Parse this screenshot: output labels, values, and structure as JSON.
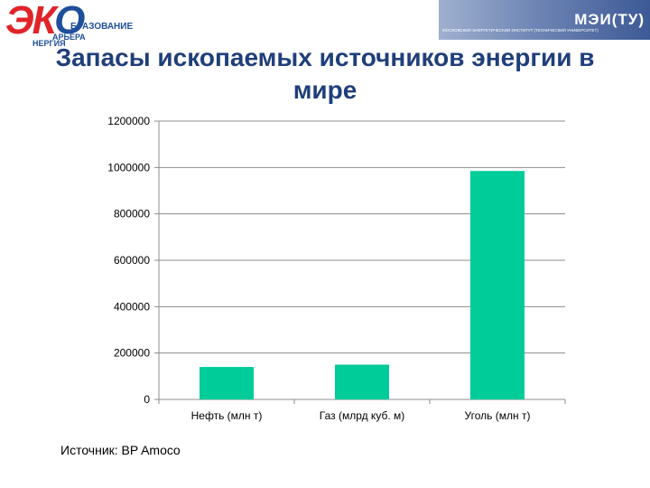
{
  "header": {
    "logo_text_red": "ЭК",
    "logo_text_blue": "О",
    "logo_line1": "БРАЗОВАНИЕ",
    "logo_line2": "АРЬЕРА",
    "logo_line3": "НЕРГИЯ",
    "banner_title": "МЭИ(ТУ)",
    "banner_subtitle": "МОСКОВСКИЙ ЭНЕРГЕТИЧЕСКИЙ ИНСТИТУТ (ТЕХНИЧЕСКИЙ УНИВЕРСИТЕТ)"
  },
  "colors": {
    "bar": "#00cc99",
    "title": "#1f3f7a",
    "grid": "#8c8c8c"
  },
  "chart_data": {
    "type": "bar",
    "title": "Запасы ископаемых источников энергии в мире",
    "categories": [
      "Нефть (млн т)",
      "Газ (млрд куб. м)",
      "Уголь (млн т)"
    ],
    "values": [
      140000,
      150000,
      985000
    ],
    "ylim": [
      0,
      1200000
    ],
    "yticks": [
      "0",
      "200000",
      "400000",
      "600000",
      "800000",
      "1000000",
      "1200000"
    ],
    "grid": true,
    "legend": "none"
  },
  "source_label": "Источник:  BP Amoco"
}
